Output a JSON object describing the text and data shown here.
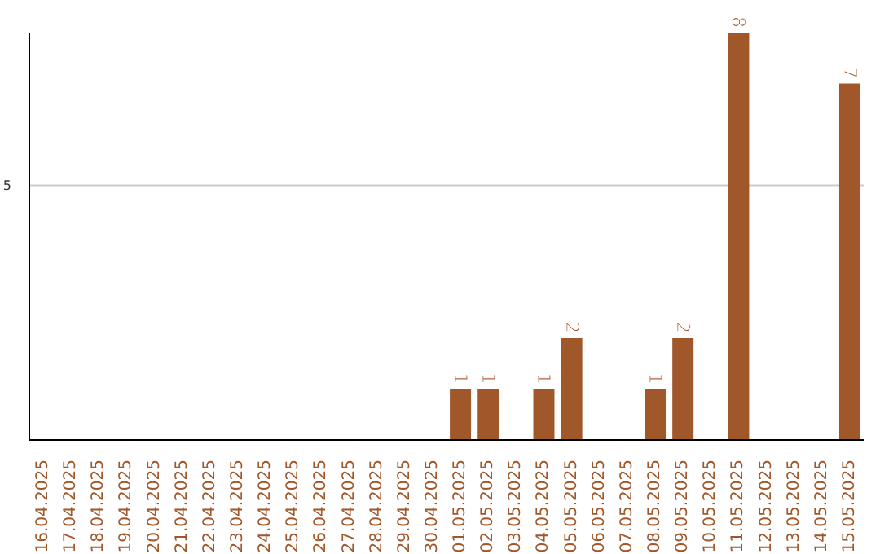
{
  "chart_data": {
    "type": "bar",
    "categories": [
      "16.04.2025",
      "17.04.2025",
      "18.04.2025",
      "19.04.2025",
      "20.04.2025",
      "21.04.2025",
      "22.04.2025",
      "23.04.2025",
      "24.04.2025",
      "25.04.2025",
      "26.04.2025",
      "27.04.2025",
      "28.04.2025",
      "29.04.2025",
      "30.04.2025",
      "01.05.2025",
      "02.05.2025",
      "03.05.2025",
      "04.05.2025",
      "05.05.2025",
      "06.05.2025",
      "07.05.2025",
      "08.05.2025",
      "09.05.2025",
      "10.05.2025",
      "11.05.2025",
      "12.05.2025",
      "13.05.2025",
      "14.05.2025",
      "15.05.2025"
    ],
    "values": [
      null,
      null,
      null,
      null,
      null,
      null,
      null,
      null,
      null,
      null,
      null,
      null,
      null,
      null,
      null,
      1,
      1,
      null,
      1,
      2,
      null,
      null,
      1,
      2,
      null,
      8,
      null,
      null,
      null,
      7
    ],
    "data_labels": true,
    "color": "#a0572a",
    "ylim": [
      0,
      8
    ],
    "yticks": [
      5
    ],
    "grid": "y"
  }
}
